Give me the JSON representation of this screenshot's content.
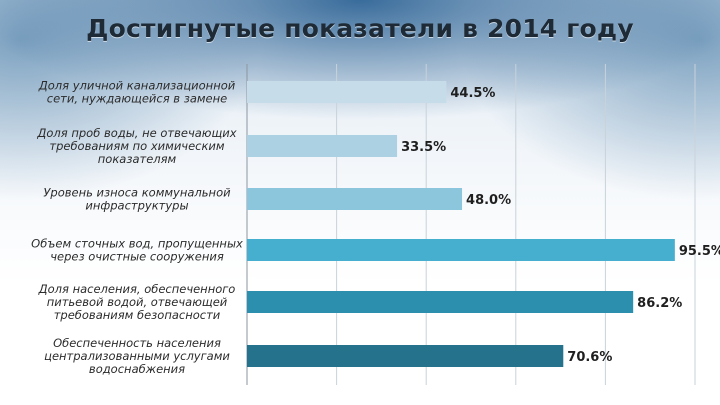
{
  "title": "Достигнутые показатели в 2014 году",
  "chart_data": {
    "type": "bar",
    "orientation": "horizontal",
    "title": "Достигнутые показатели в 2014 году",
    "categories": [
      [
        "Доля уличной канализационной",
        "сети, нуждающейся в замене"
      ],
      [
        "Доля проб воды, не отвечающих",
        "требованиям по химическим",
        "показателям"
      ],
      [
        "Уровень износа коммунальной",
        "инфраструктуры"
      ],
      [
        "Объем сточных вод, пропущенных",
        "через очистные сооружения"
      ],
      [
        "Доля населения, обеспеченного",
        "питьевой водой, отвечающей",
        "требованиям безопасности"
      ],
      [
        "Обеспеченность населения",
        "централизованными услугами",
        "водоснабжения"
      ]
    ],
    "values": [
      44.5,
      33.5,
      48.0,
      95.5,
      86.2,
      70.6
    ],
    "value_labels": [
      "44.5%",
      "33.5%",
      "48.0%",
      "95.5%",
      "86.2%",
      "70.6%"
    ],
    "colors": [
      "#c6dde9",
      "#acd1e2",
      "#8cc6dc",
      "#46aecf",
      "#2c8fae",
      "#25728d"
    ],
    "xlim": [
      0,
      100
    ],
    "grid": true,
    "legend": "none"
  }
}
